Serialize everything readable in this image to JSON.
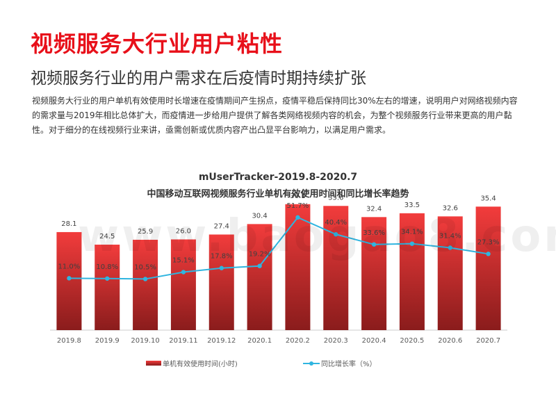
{
  "page": {
    "title": "视频服务大行业用户粘性",
    "subtitle": "视频服务行业的用户需求在后疫情时期持续扩张",
    "body": "视频服务大行业的用户单机有效使用时长增速在疫情期间产生拐点，疫情平稳后保持同比30%左右的增速，说明用户对网络视频内容的需求量与2019年相比总体扩大，而疫情进一步给用户提供了解各类网络视频内容的机会，为整个视频服务行业带来更高的用户黏性。对于细分的在线视频行业来讲，亟需创新或优质内容产出凸显平台影响力，以满足用户需求。",
    "watermark": "www.baogao8.com"
  },
  "chart_data": {
    "type": "bar+line",
    "title": "mUserTracker-2019.8-2020.7",
    "subtitle": "中国移动互联网视频服务行业单机有效使用时间和同比增长率趋势",
    "categories": [
      "2019.8",
      "2019.9",
      "2019.10",
      "2019.11",
      "2019.12",
      "2020.1",
      "2020.2",
      "2020.3",
      "2020.4",
      "2020.5",
      "2020.6",
      "2020.7"
    ],
    "series": [
      {
        "name": "单机有效使用时间(小时)",
        "type": "bar",
        "values": [
          28.1,
          24.5,
          25.9,
          26.0,
          27.4,
          30.4,
          36.1,
          35.6,
          32.4,
          33.5,
          32.6,
          35.4
        ],
        "labels": [
          "28.1",
          "24.5",
          "25.9",
          "26.0",
          "27.4",
          "30.4",
          "36.1",
          "35.6",
          "32.4",
          "33.5",
          "32.6",
          "35.4"
        ],
        "color": "#d92f2f"
      },
      {
        "name": "同比增长率（%）",
        "type": "line",
        "values": [
          11.0,
          10.8,
          10.5,
          15.1,
          17.8,
          19.2,
          51.7,
          40.4,
          33.6,
          34.1,
          31.4,
          27.3
        ],
        "labels": [
          "11.0%",
          "10.8%",
          "10.5%",
          "15.1%",
          "17.8%",
          "19.2%",
          "51.7%",
          "40.4%",
          "33.6%",
          "34.1%",
          "31.4%",
          "27.3%"
        ],
        "color": "#2fb5e0"
      }
    ],
    "legend_position": "bottom",
    "grid": false
  }
}
